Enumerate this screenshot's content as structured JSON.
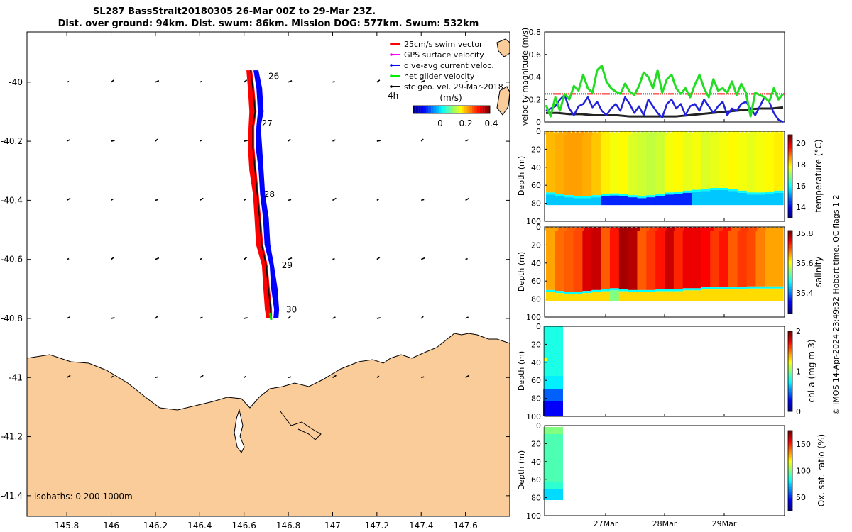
{
  "title": {
    "line1": "SL287 BassStrait20180305 26-Mar 00Z to 29-Mar 23Z.",
    "line2": "Dist. over ground: 94km. Dist. swum: 86km. Mission DOG: 577km. Swum: 532km"
  },
  "map": {
    "lon_ticks": [
      "145.8",
      "146",
      "146.2",
      "146.4",
      "146.6",
      "146.8",
      "147",
      "147.2",
      "147.4",
      "147.6"
    ],
    "lat_ticks": [
      "-40",
      "-40.2",
      "-40.4",
      "-40.6",
      "-40.8",
      "-41",
      "-41.2",
      "-41.4"
    ],
    "lon_range": [
      145.62,
      147.8
    ],
    "lat_range": [
      -41.47,
      -39.83
    ],
    "legend": [
      {
        "label": "25cm/s swim vector",
        "color": "#ff0000"
      },
      {
        "label": "GPS surface velocity",
        "color": "#ff00ff"
      },
      {
        "label": "dive-avg current veloc.",
        "color": "#0000ff"
      },
      {
        "label": "net glider velocity",
        "color": "#00ee00"
      },
      {
        "label": "sfc geo. vel. 29-Mar-2018",
        "color": "#000000"
      }
    ],
    "interval_label": "4h",
    "colorbar": {
      "label": "(m/s)",
      "ticks": [
        "0",
        "0.2",
        "0.4"
      ]
    },
    "isobaths_label": "isobaths: 0   200  1000m",
    "day_labels": [
      {
        "text": "26",
        "lon": 146.71,
        "lat": -39.98
      },
      {
        "text": "27",
        "lon": 146.68,
        "lat": -40.14
      },
      {
        "text": "28",
        "lon": 146.69,
        "lat": -40.38
      },
      {
        "text": "29",
        "lon": 146.77,
        "lat": -40.62
      },
      {
        "text": "30",
        "lon": 146.79,
        "lat": -40.77
      }
    ],
    "track": [
      {
        "lon": 146.63,
        "lat": -39.96
      },
      {
        "lon": 146.64,
        "lat": -40.02
      },
      {
        "lon": 146.65,
        "lat": -40.1
      },
      {
        "lon": 146.64,
        "lat": -40.15
      },
      {
        "lon": 146.64,
        "lat": -40.22
      },
      {
        "lon": 146.65,
        "lat": -40.3
      },
      {
        "lon": 146.66,
        "lat": -40.38
      },
      {
        "lon": 146.67,
        "lat": -40.46
      },
      {
        "lon": 146.68,
        "lat": -40.55
      },
      {
        "lon": 146.7,
        "lat": -40.62
      },
      {
        "lon": 146.71,
        "lat": -40.7
      },
      {
        "lon": 146.72,
        "lat": -40.77
      },
      {
        "lon": 146.72,
        "lat": -40.8
      }
    ]
  },
  "velocity": {
    "ylabel": "velocity magnitude (m/s)",
    "y_ticks": [
      "0",
      "0.2",
      "0.4",
      "0.6",
      "0.8"
    ],
    "ylim": [
      0,
      0.8
    ],
    "swim_level": 0.25,
    "net_glider": [
      0.15,
      0.05,
      0.22,
      0.1,
      0.25,
      0.2,
      0.32,
      0.28,
      0.42,
      0.3,
      0.26,
      0.46,
      0.5,
      0.36,
      0.3,
      0.27,
      0.25,
      0.34,
      0.27,
      0.24,
      0.32,
      0.44,
      0.4,
      0.3,
      0.46,
      0.26,
      0.38,
      0.42,
      0.3,
      0.25,
      0.3,
      0.22,
      0.33,
      0.42,
      0.3,
      0.22,
      0.38,
      0.28,
      0.3,
      0.26,
      0.36,
      0.24,
      0.34,
      0.26,
      0.05,
      0.26,
      0.24,
      0.22,
      0.18,
      0.3,
      0.2,
      0.25
    ],
    "dive_avg": [
      0.1,
      0.12,
      0.14,
      0.2,
      0.24,
      0.12,
      0.06,
      0.14,
      0.16,
      0.22,
      0.13,
      0.18,
      0.1,
      0.06,
      0.12,
      0.16,
      0.1,
      0.22,
      0.16,
      0.08,
      0.14,
      0.06,
      0.2,
      0.14,
      0.08,
      0.04,
      0.16,
      0.2,
      0.12,
      0.16,
      0.06,
      0.14,
      0.16,
      0.1,
      0.2,
      0.14,
      0.08,
      0.14,
      0.18,
      0.06,
      0.12,
      0.1,
      0.16,
      0.18,
      0.12,
      0.06,
      0.14,
      0.22,
      0.18,
      0.08,
      0.02,
      0.0
    ],
    "geo": [
      0.08,
      0.08,
      0.07,
      0.07,
      0.06,
      0.06,
      0.06,
      0.05,
      0.05,
      0.05,
      0.05,
      0.05,
      0.06,
      0.07,
      0.08,
      0.09,
      0.1,
      0.11,
      0.12,
      0.12,
      0.13
    ]
  },
  "temperature": {
    "ylabel": "Depth (m)",
    "cbar_label": "temperature (°C)",
    "cbar_ticks": [
      "14",
      "16",
      "18",
      "20"
    ],
    "clim": [
      13.0,
      20.8
    ],
    "mixed_layer": [
      68,
      70,
      71,
      72,
      72,
      71,
      70,
      69,
      70,
      71,
      72,
      71,
      70,
      68,
      67,
      66,
      65,
      64,
      63,
      63,
      64,
      66,
      68,
      68,
      67,
      66
    ],
    "upper_temp": [
      18.4,
      18.5,
      18.6,
      18.6,
      18.5,
      18.3,
      18.0,
      17.8,
      17.9,
      17.6,
      17.5,
      17.4,
      17.5,
      17.8,
      17.9,
      17.7,
      17.8,
      17.6,
      17.7,
      17.8,
      17.9,
      17.8,
      17.7,
      17.8,
      17.9,
      18.0
    ],
    "bottom_depth": 82
  },
  "salinity": {
    "ylabel": "Depth (m)",
    "cbar_label": "salinity",
    "cbar_ticks": [
      "35.4",
      "35.6",
      "35.8"
    ],
    "clim": [
      35.26,
      35.82
    ],
    "upper_sal": [
      35.66,
      35.69,
      35.7,
      35.71,
      35.77,
      35.78,
      35.7,
      35.74,
      35.8,
      35.79,
      35.7,
      35.72,
      35.74,
      35.78,
      35.73,
      35.76,
      35.76,
      35.75,
      35.72,
      35.74,
      35.7,
      35.72,
      35.71,
      35.68,
      35.66,
      35.66
    ],
    "bottom_depth": 82,
    "mixed_layer": [
      70,
      71,
      72,
      72,
      71,
      70,
      69,
      68,
      69,
      70,
      70,
      70,
      69,
      69,
      69,
      68,
      68,
      67,
      67,
      67,
      67,
      67,
      66,
      66,
      66,
      66
    ]
  },
  "chla": {
    "ylabel": "Depth (m)",
    "cbar_label": "chl-a (mg m-3)",
    "cbar_ticks": [
      "0",
      "1",
      "2"
    ],
    "clim": [
      0,
      2
    ]
  },
  "oxygen": {
    "ylabel": "Depth (m)",
    "cbar_label": "Ox. sat. ratio (%)",
    "cbar_ticks": [
      "50",
      "100",
      "150"
    ],
    "clim": [
      25,
      175
    ]
  },
  "depth_ticks": [
    "0",
    "20",
    "40",
    "60",
    "80",
    "100"
  ],
  "time_ticks": [
    "27Mar",
    "28Mar",
    "29Mar"
  ],
  "footer": "© IMOS 14-Apr-2024 23:49:32 Hobart time. QC flags 1  2"
}
